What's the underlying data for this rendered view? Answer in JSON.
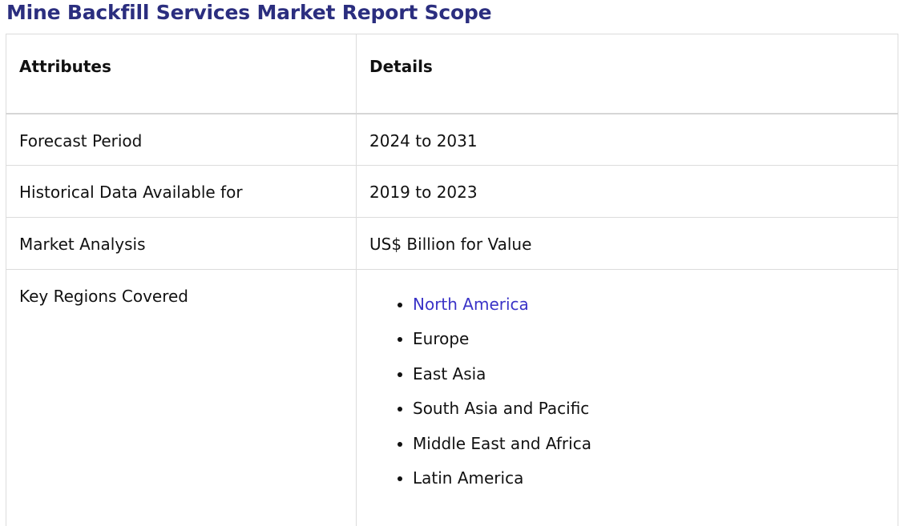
{
  "title": "Mine Backfill Services Market Report Scope",
  "table": {
    "headers": [
      "Attributes",
      "Details"
    ],
    "rows": [
      {
        "attribute": "Forecast Period",
        "detail": "2024 to 2031"
      },
      {
        "attribute": "Historical Data Available for",
        "detail": "2019 to 2023"
      },
      {
        "attribute": "Market Analysis",
        "detail": "US$ Billion for Value"
      }
    ],
    "regions_row": {
      "attribute": "Key Regions Covered",
      "regions": [
        "North America",
        "Europe",
        "East Asia",
        "South Asia and Pacific",
        "Middle East and Africa",
        "Latin America"
      ]
    }
  },
  "colors": {
    "title": "#2b2e7f",
    "link": "#3a33c7",
    "border": "#dcdcdc"
  }
}
